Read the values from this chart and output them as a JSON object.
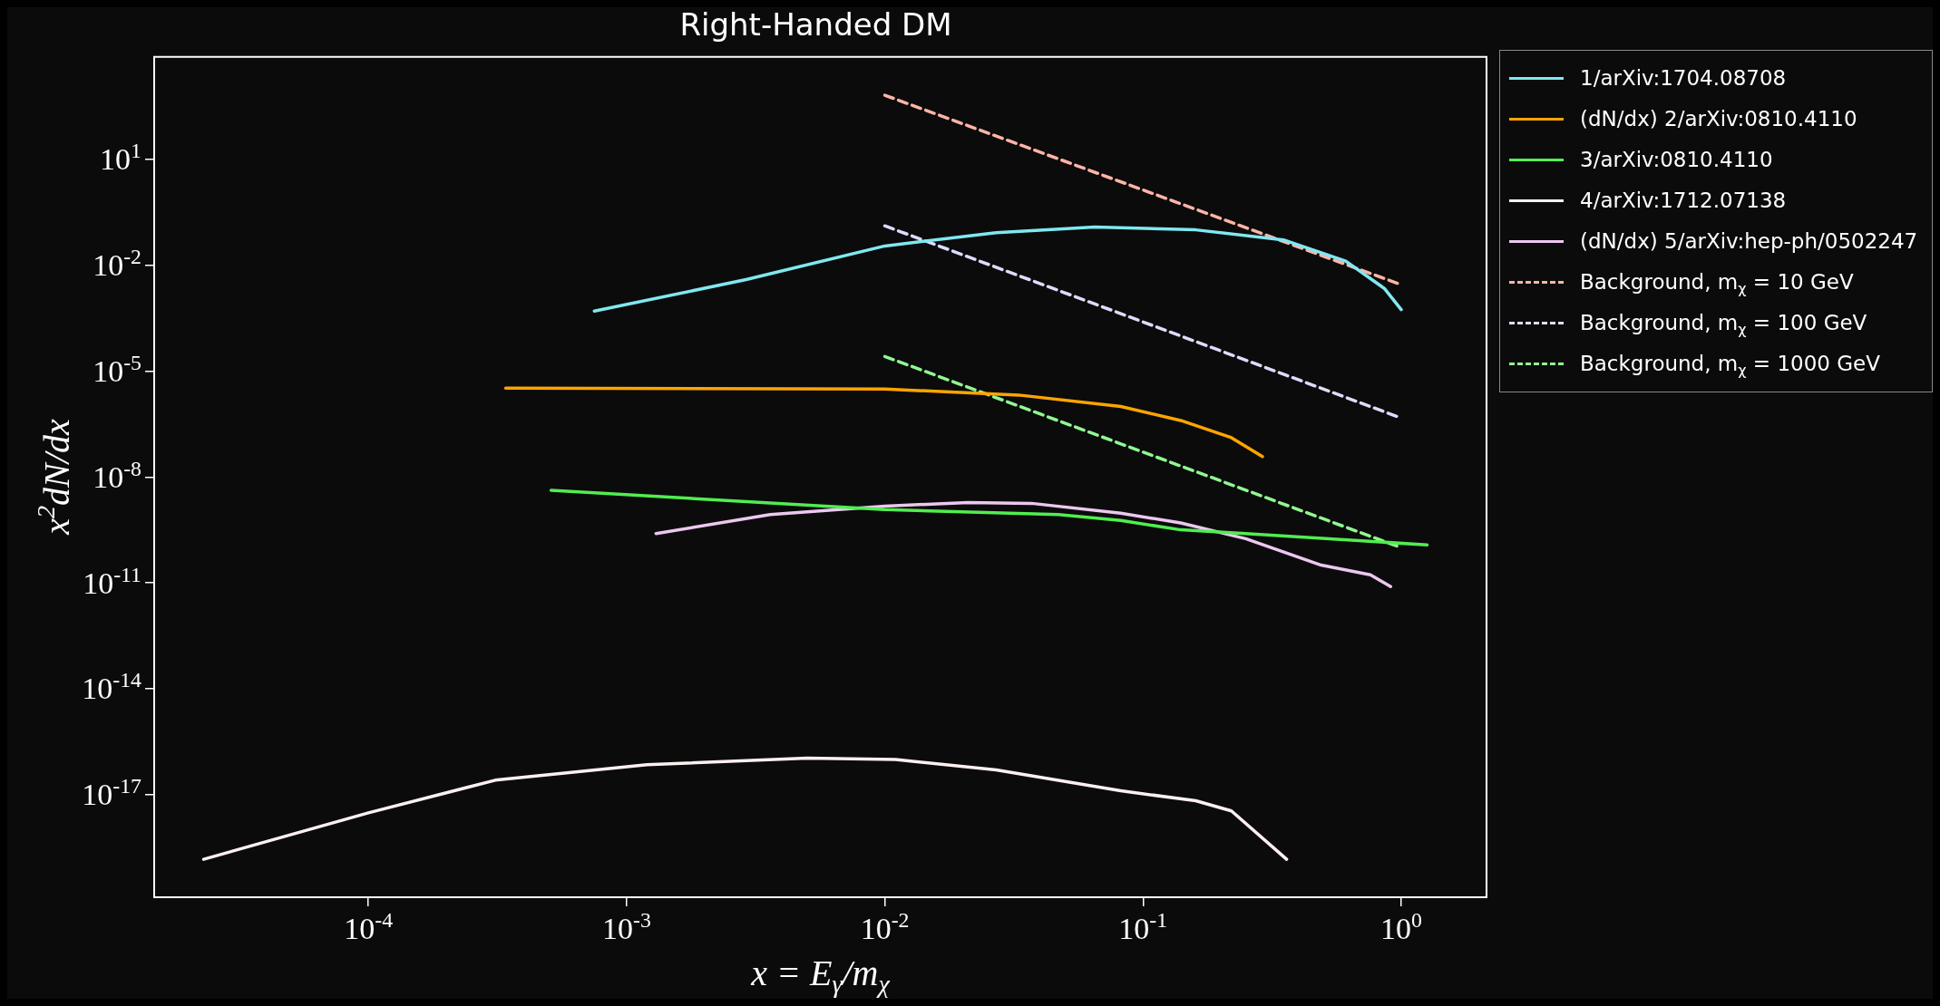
{
  "chart_data": {
    "type": "line",
    "title": "Right-Handed DM",
    "xlabel": "x = E$_{γ}$/m$_{χ}$",
    "ylabel": "x$^{2}$dN/dx",
    "log": "xy",
    "grid": false,
    "legend": "top right",
    "marker": "none",
    "xlim": [
      1.48e-05,
      2.14
    ],
    "ylim": [
      1.26e-20,
      7900
    ],
    "xticks": [
      {
        "value": 0.0001,
        "label": "10$^{-4}$"
      },
      {
        "value": 0.001,
        "label": "10$^{-3}$"
      },
      {
        "value": 0.01,
        "label": "10$^{-2}$"
      },
      {
        "value": 0.1,
        "label": "10$^{-1}$"
      },
      {
        "value": 1,
        "label": "10$^{0}$"
      }
    ],
    "yticks": [
      {
        "value": 1e-17,
        "label": "10$^{-17}$"
      },
      {
        "value": 1e-14,
        "label": "10$^{-14}$"
      },
      {
        "value": 1e-11,
        "label": "10$^{-11}$"
      },
      {
        "value": 1e-08,
        "label": "10$^{-8}$"
      },
      {
        "value": 1e-05,
        "label": "10$^{-5}$"
      },
      {
        "value": 0.01,
        "label": "10$^{-2}$"
      },
      {
        "value": 10,
        "label": "10$^{1}$"
      }
    ],
    "series": [
      {
        "name": "1/arXiv:1704.08708",
        "color": "#80e8f0",
        "line_style": "solid",
        "x": [
          0.00075,
          0.0029,
          0.01,
          0.027,
          0.065,
          0.16,
          0.35,
          0.61,
          0.86,
          1.0
        ],
        "values": [
          0.0005,
          0.0039,
          0.035,
          0.083,
          0.12,
          0.1,
          0.052,
          0.013,
          0.0022,
          0.00055
        ]
      },
      {
        "name": "(dN/dx) 2/arXiv:0810.4110",
        "color": "#ffa500",
        "line_style": "solid",
        "x": [
          0.00034,
          0.01,
          0.033,
          0.082,
          0.14,
          0.22,
          0.29
        ],
        "values": [
          3.3e-06,
          3.1e-06,
          2.1e-06,
          1e-06,
          4e-07,
          1.3e-07,
          3.8e-08
        ]
      },
      {
        "name": "3/arXiv:0810.4110",
        "color": "#50ee50",
        "line_style": "solid",
        "x": [
          0.00051,
          0.01,
          0.047,
          0.082,
          0.14,
          0.25,
          1.26
        ],
        "values": [
          4.2e-09,
          1.2e-09,
          8.7e-10,
          5.9e-10,
          3.2e-10,
          2.5e-10,
          1.2e-10
        ]
      },
      {
        "name": "4/arXiv:1712.07138",
        "color": "#fff0f0",
        "line_style": "solid",
        "x": [
          2.3e-05,
          0.0001,
          0.00031,
          0.0012,
          0.005,
          0.011,
          0.027,
          0.082,
          0.16,
          0.22,
          0.36
        ],
        "values": [
          1.5e-19,
          3.1e-18,
          2.6e-17,
          7.1e-17,
          1.1e-16,
          1e-16,
          5.1e-17,
          1.3e-17,
          6.8e-18,
          3.5e-18,
          1.5e-19
        ]
      },
      {
        "name": "(dN/dx) 5/arXiv:hep-ph/0502247",
        "color": "#ecc8f0",
        "line_style": "solid",
        "x": [
          0.0013,
          0.0036,
          0.01,
          0.021,
          0.037,
          0.082,
          0.14,
          0.25,
          0.49,
          0.76,
          0.91
        ],
        "values": [
          2.5e-10,
          8.7e-10,
          1.5e-09,
          1.9e-09,
          1.8e-09,
          9.5e-10,
          5e-10,
          1.8e-10,
          3.2e-11,
          1.7e-11,
          7.9e-12
        ]
      },
      {
        "name": "Background, m$_{χ}$ = 10 GeV",
        "color": "#ffb4a8",
        "line_style": "dashed",
        "x": [
          0.01,
          1
        ],
        "values": [
          650,
          0.0028
        ]
      },
      {
        "name": "Background, m$_{χ}$ = 100 GeV",
        "color": "#dcdcff",
        "line_style": "dashed",
        "x": [
          0.01,
          1
        ],
        "values": [
          0.13,
          4.7e-07
        ]
      },
      {
        "name": "Background, m$_{χ}$ = 1000 GeV",
        "color": "#90f890",
        "line_style": "dashed",
        "x": [
          0.01,
          1
        ],
        "values": [
          2.6e-05,
          1e-10
        ]
      }
    ]
  }
}
